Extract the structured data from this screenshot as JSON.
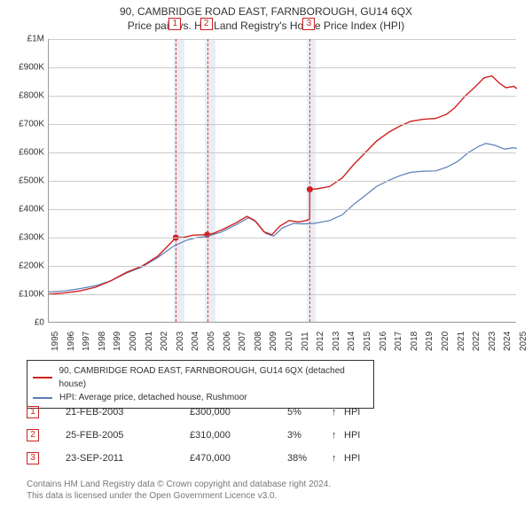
{
  "header": {
    "title": "90, CAMBRIDGE ROAD EAST, FARNBOROUGH, GU14 6QX",
    "subtitle": "Price paid vs. HM Land Registry's House Price Index (HPI)"
  },
  "chart": {
    "type": "line",
    "xlim": [
      1995,
      2025
    ],
    "ylim": [
      0,
      1000000
    ],
    "ytick_step": 100000,
    "ytick_labels": [
      "£0",
      "£100K",
      "£200K",
      "£300K",
      "£400K",
      "£500K",
      "£600K",
      "£700K",
      "£800K",
      "£900K",
      "£1M"
    ],
    "xtick_step": 1,
    "xtick_labels": [
      "1995",
      "1996",
      "1997",
      "1998",
      "1999",
      "2000",
      "2001",
      "2002",
      "2003",
      "2004",
      "2005",
      "2006",
      "2007",
      "2008",
      "2009",
      "2010",
      "2011",
      "2012",
      "2013",
      "2014",
      "2015",
      "2016",
      "2017",
      "2018",
      "2019",
      "2020",
      "2021",
      "2022",
      "2023",
      "2024",
      "2025"
    ],
    "background_color": "#ffffff",
    "grid_color": "#cccccc",
    "axis_color": "#999999",
    "label_fontsize": 10,
    "title_fontsize": 12,
    "series": [
      {
        "name": "property_price",
        "label": "90, CAMBRIDGE ROAD EAST, FARNBOROUGH, GU14 6QX (detached house)",
        "color": "#d02020",
        "line_width": 1.4,
        "data": [
          [
            1995.0,
            100000
          ],
          [
            1996.0,
            105000
          ],
          [
            1997.0,
            112000
          ],
          [
            1998.0,
            125000
          ],
          [
            1999.0,
            148000
          ],
          [
            2000.0,
            178000
          ],
          [
            2001.0,
            200000
          ],
          [
            2002.0,
            235000
          ],
          [
            2002.8,
            280000
          ],
          [
            2003.14,
            300000
          ],
          [
            2003.6,
            300000
          ],
          [
            2004.2,
            308000
          ],
          [
            2004.8,
            310000
          ],
          [
            2005.15,
            310000
          ],
          [
            2005.6,
            316000
          ],
          [
            2006.2,
            330000
          ],
          [
            2007.0,
            352000
          ],
          [
            2007.7,
            375000
          ],
          [
            2008.2,
            360000
          ],
          [
            2008.8,
            320000
          ],
          [
            2009.3,
            310000
          ],
          [
            2009.8,
            340000
          ],
          [
            2010.4,
            360000
          ],
          [
            2011.0,
            355000
          ],
          [
            2011.5,
            360000
          ],
          [
            2011.72,
            365000
          ],
          [
            2011.73,
            470000
          ],
          [
            2012.2,
            472000
          ],
          [
            2013.0,
            480000
          ],
          [
            2013.8,
            510000
          ],
          [
            2014.5,
            555000
          ],
          [
            2015.2,
            595000
          ],
          [
            2016.0,
            640000
          ],
          [
            2016.8,
            672000
          ],
          [
            2017.5,
            693000
          ],
          [
            2018.2,
            710000
          ],
          [
            2019.0,
            717000
          ],
          [
            2019.8,
            720000
          ],
          [
            2020.5,
            735000
          ],
          [
            2021.0,
            757000
          ],
          [
            2021.7,
            800000
          ],
          [
            2022.3,
            830000
          ],
          [
            2022.9,
            863000
          ],
          [
            2023.4,
            870000
          ],
          [
            2023.9,
            843000
          ],
          [
            2024.3,
            828000
          ],
          [
            2024.8,
            833000
          ],
          [
            2025.0,
            825000
          ]
        ]
      },
      {
        "name": "hpi",
        "label": "HPI: Average price, detached house, Rushmoor",
        "color": "#5b7fb8",
        "line_width": 1.2,
        "data": [
          [
            1995.0,
            108000
          ],
          [
            1996.0,
            112000
          ],
          [
            1997.0,
            120000
          ],
          [
            1998.0,
            130000
          ],
          [
            1999.0,
            148000
          ],
          [
            2000.0,
            175000
          ],
          [
            2001.0,
            197000
          ],
          [
            2002.0,
            230000
          ],
          [
            2003.0,
            270000
          ],
          [
            2003.8,
            290000
          ],
          [
            2004.5,
            300000
          ],
          [
            2005.2,
            305000
          ],
          [
            2006.0,
            318000
          ],
          [
            2007.0,
            345000
          ],
          [
            2007.8,
            370000
          ],
          [
            2008.3,
            355000
          ],
          [
            2008.9,
            315000
          ],
          [
            2009.4,
            305000
          ],
          [
            2010.0,
            335000
          ],
          [
            2010.7,
            350000
          ],
          [
            2011.3,
            348000
          ],
          [
            2012.0,
            350000
          ],
          [
            2013.0,
            360000
          ],
          [
            2013.8,
            380000
          ],
          [
            2014.5,
            415000
          ],
          [
            2015.2,
            445000
          ],
          [
            2016.0,
            480000
          ],
          [
            2016.8,
            502000
          ],
          [
            2017.5,
            518000
          ],
          [
            2018.2,
            530000
          ],
          [
            2019.0,
            534000
          ],
          [
            2019.8,
            535000
          ],
          [
            2020.5,
            548000
          ],
          [
            2021.2,
            568000
          ],
          [
            2021.9,
            600000
          ],
          [
            2022.5,
            620000
          ],
          [
            2023.0,
            632000
          ],
          [
            2023.6,
            625000
          ],
          [
            2024.2,
            612000
          ],
          [
            2024.8,
            617000
          ],
          [
            2025.0,
            614000
          ]
        ]
      }
    ],
    "sale_markers": [
      {
        "n": "1",
        "x": 2003.14,
        "y": 300000,
        "band_start": 2003.0,
        "band_end": 2003.7
      },
      {
        "n": "2",
        "x": 2005.15,
        "y": 310000,
        "band_start": 2005.0,
        "band_end": 2005.7
      },
      {
        "n": "3",
        "x": 2011.73,
        "y": 470000,
        "band_start": 2011.55,
        "band_end": 2012.1
      }
    ],
    "marker_line_color": "#e03030",
    "marker_band_color": "#e9eef6",
    "marker_box_border": "#d02020",
    "marker_dot_color": "#d02020"
  },
  "legend": {
    "border_color": "#333333",
    "fontsize": 10
  },
  "events": [
    {
      "n": "1",
      "date": "21-FEB-2003",
      "price": "£300,000",
      "delta": "5%",
      "arrow": "↑",
      "ref": "HPI"
    },
    {
      "n": "2",
      "date": "25-FEB-2005",
      "price": "£310,000",
      "delta": "3%",
      "arrow": "↑",
      "ref": "HPI"
    },
    {
      "n": "3",
      "date": "23-SEP-2011",
      "price": "£470,000",
      "delta": "38%",
      "arrow": "↑",
      "ref": "HPI"
    }
  ],
  "footnote": {
    "line1": "Contains HM Land Registry data © Crown copyright and database right 2024.",
    "line2": "This data is licensed under the Open Government Licence v3.0.",
    "color": "#777777",
    "fontsize": 10
  }
}
